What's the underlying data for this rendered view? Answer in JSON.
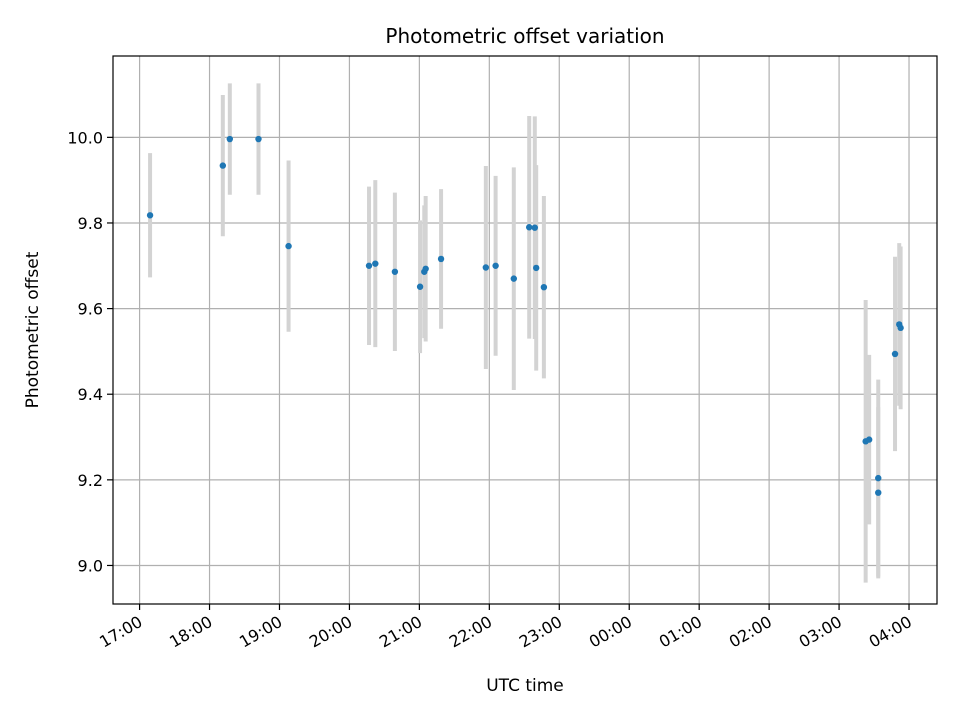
{
  "chart_data": {
    "type": "scatter",
    "title": "Photometric offset variation",
    "xlabel": "UTC time",
    "ylabel": "Photometric offset",
    "x_unit": "hours after 17:00 UTC",
    "xlim": [
      -0.38,
      11.4
    ],
    "ylim": [
      8.91,
      10.19
    ],
    "grid": true,
    "x_ticks": [
      {
        "value": 0,
        "label": "17:00"
      },
      {
        "value": 1,
        "label": "18:00"
      },
      {
        "value": 2,
        "label": "19:00"
      },
      {
        "value": 3,
        "label": "20:00"
      },
      {
        "value": 4,
        "label": "21:00"
      },
      {
        "value": 5,
        "label": "22:00"
      },
      {
        "value": 6,
        "label": "23:00"
      },
      {
        "value": 7,
        "label": "00:00"
      },
      {
        "value": 8,
        "label": "01:00"
      },
      {
        "value": 9,
        "label": "02:00"
      },
      {
        "value": 10,
        "label": "03:00"
      },
      {
        "value": 11,
        "label": "04:00"
      }
    ],
    "y_ticks": [
      {
        "value": 9.0,
        "label": "9.0"
      },
      {
        "value": 9.2,
        "label": "9.2"
      },
      {
        "value": 9.4,
        "label": "9.4"
      },
      {
        "value": 9.6,
        "label": "9.6"
      },
      {
        "value": 9.8,
        "label": "9.8"
      },
      {
        "value": 10.0,
        "label": "10.0"
      }
    ],
    "colors": {
      "point": "#1f77b4",
      "errorbar": "#d3d3d3",
      "grid": "#b0b0b0"
    },
    "points": [
      {
        "x": 0.15,
        "y": 9.818,
        "err": 0.145
      },
      {
        "x": 1.19,
        "y": 9.934,
        "err": 0.165
      },
      {
        "x": 1.29,
        "y": 9.996,
        "err": 0.13
      },
      {
        "x": 1.7,
        "y": 9.996,
        "err": 0.13
      },
      {
        "x": 2.13,
        "y": 9.746,
        "err": 0.2
      },
      {
        "x": 3.28,
        "y": 9.7,
        "err": 0.185
      },
      {
        "x": 3.37,
        "y": 9.705,
        "err": 0.195
      },
      {
        "x": 3.65,
        "y": 9.686,
        "err": 0.185
      },
      {
        "x": 4.01,
        "y": 9.651,
        "err": 0.155
      },
      {
        "x": 4.07,
        "y": 9.686,
        "err": 0.155
      },
      {
        "x": 4.09,
        "y": 9.693,
        "err": 0.17
      },
      {
        "x": 4.31,
        "y": 9.716,
        "err": 0.163
      },
      {
        "x": 4.95,
        "y": 9.696,
        "err": 0.237
      },
      {
        "x": 5.09,
        "y": 9.7,
        "err": 0.21
      },
      {
        "x": 5.35,
        "y": 9.67,
        "err": 0.26
      },
      {
        "x": 5.57,
        "y": 9.79,
        "err": 0.26
      },
      {
        "x": 5.65,
        "y": 9.789,
        "err": 0.26
      },
      {
        "x": 5.67,
        "y": 9.695,
        "err": 0.24
      },
      {
        "x": 5.78,
        "y": 9.65,
        "err": 0.213
      },
      {
        "x": 10.38,
        "y": 9.29,
        "err": 0.33
      },
      {
        "x": 10.43,
        "y": 9.294,
        "err": 0.198
      },
      {
        "x": 10.56,
        "y": 9.204,
        "err": 0.23
      },
      {
        "x": 10.56,
        "y": 9.17,
        "err": 0.2
      },
      {
        "x": 10.8,
        "y": 9.494,
        "err": 0.227
      },
      {
        "x": 10.86,
        "y": 9.563,
        "err": 0.19
      },
      {
        "x": 10.88,
        "y": 9.555,
        "err": 0.19
      }
    ]
  }
}
